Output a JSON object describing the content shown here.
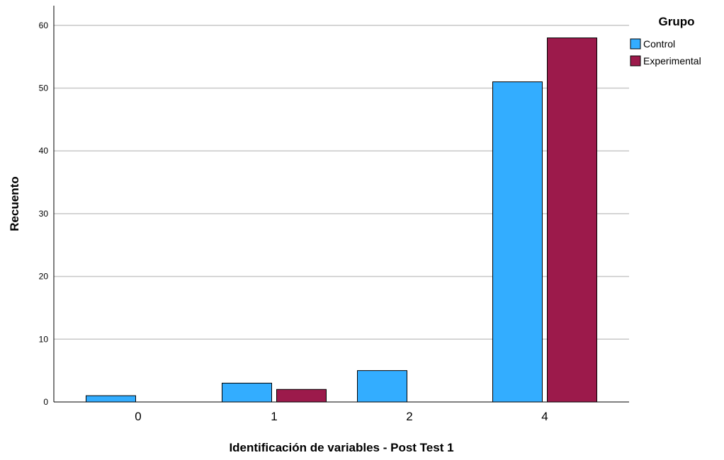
{
  "chart_data": {
    "type": "bar",
    "categories": [
      "0",
      "1",
      "2",
      "4"
    ],
    "series": [
      {
        "name": "Control",
        "values": [
          1,
          3,
          5,
          51
        ],
        "color": "#33adff"
      },
      {
        "name": "Experimental",
        "values": [
          0,
          2,
          0,
          58
        ],
        "color": "#9c1a4b"
      }
    ],
    "xlabel": "Identificación de variables - Post Test 1",
    "ylabel": "Recuento",
    "ylim": [
      0,
      63
    ],
    "yticks": [
      0,
      10,
      20,
      30,
      40,
      50,
      60
    ],
    "grid": true,
    "legend": {
      "title": "Grupo",
      "placement": "top-right"
    }
  }
}
